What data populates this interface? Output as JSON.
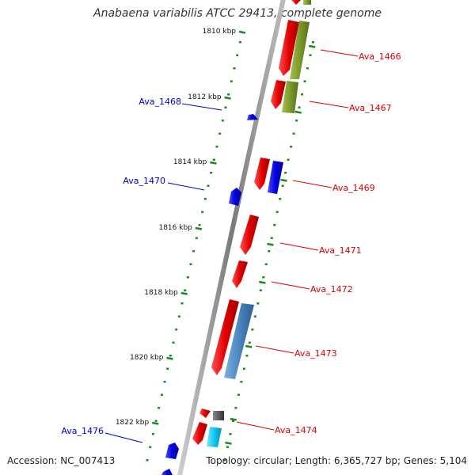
{
  "title": "Anabaena variabilis ATCC 29413, complete genome",
  "footer": {
    "accession": "Accession: NC_007413",
    "summary": "Topology: circular; Length: 6,365,727 bp; Genes: 5,104"
  },
  "ruler": {
    "ticks": [
      {
        "label": "1810 kbp",
        "pos_kbp": 1810
      },
      {
        "label": "1812 kbp",
        "pos_kbp": 1812
      },
      {
        "label": "1814 kbp",
        "pos_kbp": 1814
      },
      {
        "label": "1816 kbp",
        "pos_kbp": 1816
      },
      {
        "label": "1818 kbp",
        "pos_kbp": 1818
      },
      {
        "label": "1820 kbp",
        "pos_kbp": 1820
      },
      {
        "label": "1822 kbp",
        "pos_kbp": 1822
      }
    ]
  },
  "genes": [
    {
      "label": "Ava_1466",
      "strand": "plus",
      "color": "#dd0000"
    },
    {
      "label": "Ava_1467",
      "strand": "plus",
      "color": "#dd0000"
    },
    {
      "label": "Ava_1468",
      "strand": "minus",
      "color": "#0000cc"
    },
    {
      "label": "Ava_1469",
      "strand": "plus",
      "color": "#dd0000"
    },
    {
      "label": "Ava_1470",
      "strand": "minus",
      "color": "#0000cc"
    },
    {
      "label": "Ava_1471",
      "strand": "plus",
      "color": "#dd0000"
    },
    {
      "label": "Ava_1472",
      "strand": "plus",
      "color": "#dd0000"
    },
    {
      "label": "Ava_1473",
      "strand": "plus",
      "color": "#dd0000"
    },
    {
      "label": "Ava_1474",
      "strand": "plus",
      "color": "#dd0000"
    },
    {
      "label": "Ava_1476",
      "strand": "minus",
      "color": "#0000cc"
    }
  ],
  "colors": {
    "forward_cds": "#e00000",
    "reverse_cds": "#0000ee",
    "olive_feature": "#7a9a2a",
    "steel_feature": "#4a86c0",
    "cyan_feature": "#10c8f0",
    "gray_feature": "#555555",
    "tick_green": "#1a8a1a",
    "backbone": "#888888"
  }
}
